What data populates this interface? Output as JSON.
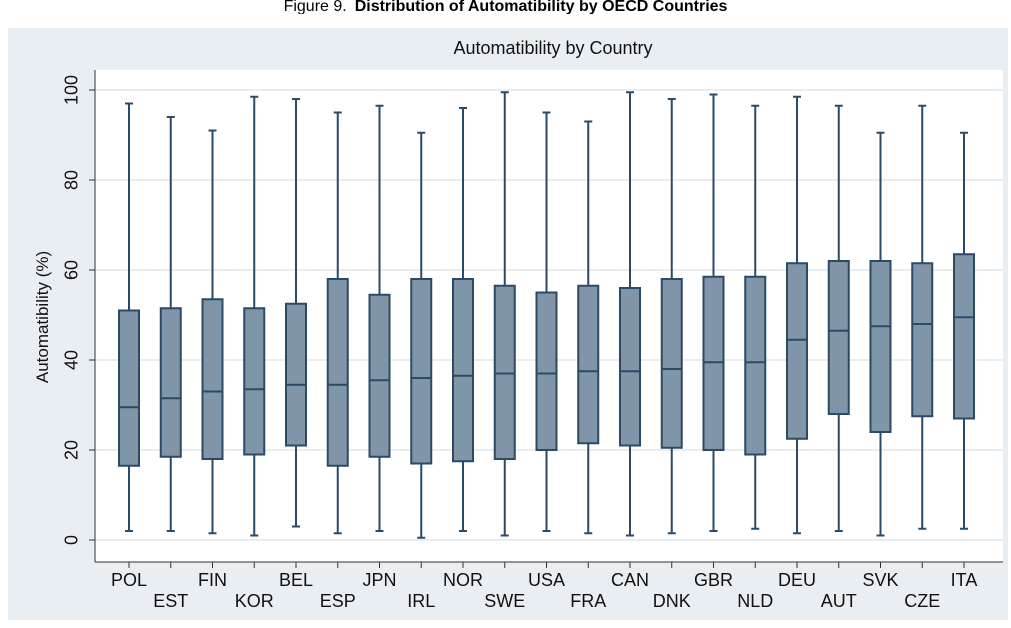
{
  "figure": {
    "prefix": "Figure 9.",
    "title": "Distribution of Automatibility by OECD Countries"
  },
  "colors": {
    "outer_background": "#e8eef2",
    "plot_background": "#ffffff",
    "gridline": "#e2e7ea",
    "box_fill": "#8095a8",
    "box_stroke": "#2a4a66",
    "axis": "#333333"
  },
  "chart_data": {
    "type": "box",
    "title": "Automatibility by Country",
    "xlabel": "",
    "ylabel": "Automatibility (%)",
    "ylim": [
      -3,
      103
    ],
    "yticks": [
      0,
      20,
      40,
      60,
      80,
      100
    ],
    "grid": true,
    "categories": [
      "POL",
      "EST",
      "FIN",
      "KOR",
      "BEL",
      "ESP",
      "JPN",
      "IRL",
      "NOR",
      "SWE",
      "USA",
      "FRA",
      "CAN",
      "DNK",
      "GBR",
      "NLD",
      "DEU",
      "AUT",
      "SVK",
      "CZE",
      "ITA"
    ],
    "boxes": [
      {
        "label": "POL",
        "min": 2,
        "q1": 16.5,
        "median": 29.5,
        "q3": 51,
        "max": 97
      },
      {
        "label": "EST",
        "min": 2,
        "q1": 18.5,
        "median": 31.5,
        "q3": 51.5,
        "max": 94
      },
      {
        "label": "FIN",
        "min": 1.5,
        "q1": 18,
        "median": 33,
        "q3": 53.5,
        "max": 91
      },
      {
        "label": "KOR",
        "min": 1,
        "q1": 19,
        "median": 33.5,
        "q3": 51.5,
        "max": 98.5
      },
      {
        "label": "BEL",
        "min": 3,
        "q1": 21,
        "median": 34.5,
        "q3": 52.5,
        "max": 98
      },
      {
        "label": "ESP",
        "min": 1.5,
        "q1": 16.5,
        "median": 34.5,
        "q3": 58,
        "max": 95
      },
      {
        "label": "JPN",
        "min": 2,
        "q1": 18.5,
        "median": 35.5,
        "q3": 54.5,
        "max": 96.5
      },
      {
        "label": "IRL",
        "min": 0.5,
        "q1": 17,
        "median": 36,
        "q3": 58,
        "max": 90.5
      },
      {
        "label": "NOR",
        "min": 2,
        "q1": 17.5,
        "median": 36.5,
        "q3": 58,
        "max": 96
      },
      {
        "label": "SWE",
        "min": 1,
        "q1": 18,
        "median": 37,
        "q3": 56.5,
        "max": 99.5
      },
      {
        "label": "USA",
        "min": 2,
        "q1": 20,
        "median": 37,
        "q3": 55,
        "max": 95
      },
      {
        "label": "FRA",
        "min": 1.5,
        "q1": 21.5,
        "median": 37.5,
        "q3": 56.5,
        "max": 93
      },
      {
        "label": "CAN",
        "min": 1,
        "q1": 21,
        "median": 37.5,
        "q3": 56,
        "max": 99.5
      },
      {
        "label": "DNK",
        "min": 1.5,
        "q1": 20.5,
        "median": 38,
        "q3": 58,
        "max": 98
      },
      {
        "label": "GBR",
        "min": 2,
        "q1": 20,
        "median": 39.5,
        "q3": 58.5,
        "max": 99
      },
      {
        "label": "NLD",
        "min": 2.5,
        "q1": 19,
        "median": 39.5,
        "q3": 58.5,
        "max": 96.5
      },
      {
        "label": "DEU",
        "min": 1.5,
        "q1": 22.5,
        "median": 44.5,
        "q3": 61.5,
        "max": 98.5
      },
      {
        "label": "AUT",
        "min": 2,
        "q1": 28,
        "median": 46.5,
        "q3": 62,
        "max": 96.5
      },
      {
        "label": "SVK",
        "min": 1,
        "q1": 24,
        "median": 47.5,
        "q3": 62,
        "max": 90.5
      },
      {
        "label": "CZE",
        "min": 2.5,
        "q1": 27.5,
        "median": 48,
        "q3": 61.5,
        "max": 96.5
      },
      {
        "label": "ITA",
        "min": 2.5,
        "q1": 27,
        "median": 49.5,
        "q3": 63.5,
        "max": 90.5
      }
    ]
  }
}
